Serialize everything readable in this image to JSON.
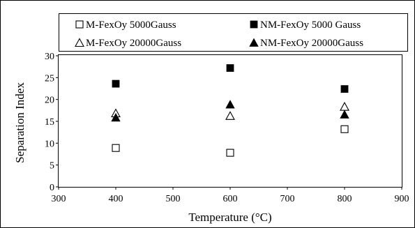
{
  "chart_data": {
    "type": "scatter",
    "xlabel": "Temperature (°C)",
    "ylabel": "Separation Index",
    "xlim": [
      300,
      900
    ],
    "ylim": [
      0,
      30
    ],
    "x_ticks": [
      300,
      400,
      500,
      600,
      700,
      800,
      900
    ],
    "y_ticks": [
      0,
      5,
      10,
      15,
      20,
      25,
      30
    ],
    "grid": false,
    "legend_position": "top",
    "series": [
      {
        "name": "M-FexOy 5000Gauss",
        "marker": "square-open",
        "color": "#000000",
        "points": [
          {
            "x": 400,
            "y": 8.9
          },
          {
            "x": 600,
            "y": 7.8
          },
          {
            "x": 800,
            "y": 13.2
          }
        ]
      },
      {
        "name": "NM-FexOy 5000 Gauss",
        "marker": "square-filled",
        "color": "#000000",
        "points": [
          {
            "x": 400,
            "y": 23.6
          },
          {
            "x": 600,
            "y": 27.2
          },
          {
            "x": 800,
            "y": 22.4
          }
        ]
      },
      {
        "name": "M-FexOy 20000Gauss",
        "marker": "triangle-open",
        "color": "#000000",
        "points": [
          {
            "x": 400,
            "y": 16.9
          },
          {
            "x": 600,
            "y": 16.3
          },
          {
            "x": 800,
            "y": 18.4
          }
        ]
      },
      {
        "name": "NM-FexOy 20000Gauss",
        "marker": "triangle-filled",
        "color": "#000000",
        "points": [
          {
            "x": 400,
            "y": 15.9
          },
          {
            "x": 600,
            "y": 18.9
          },
          {
            "x": 800,
            "y": 16.6
          }
        ]
      }
    ]
  }
}
